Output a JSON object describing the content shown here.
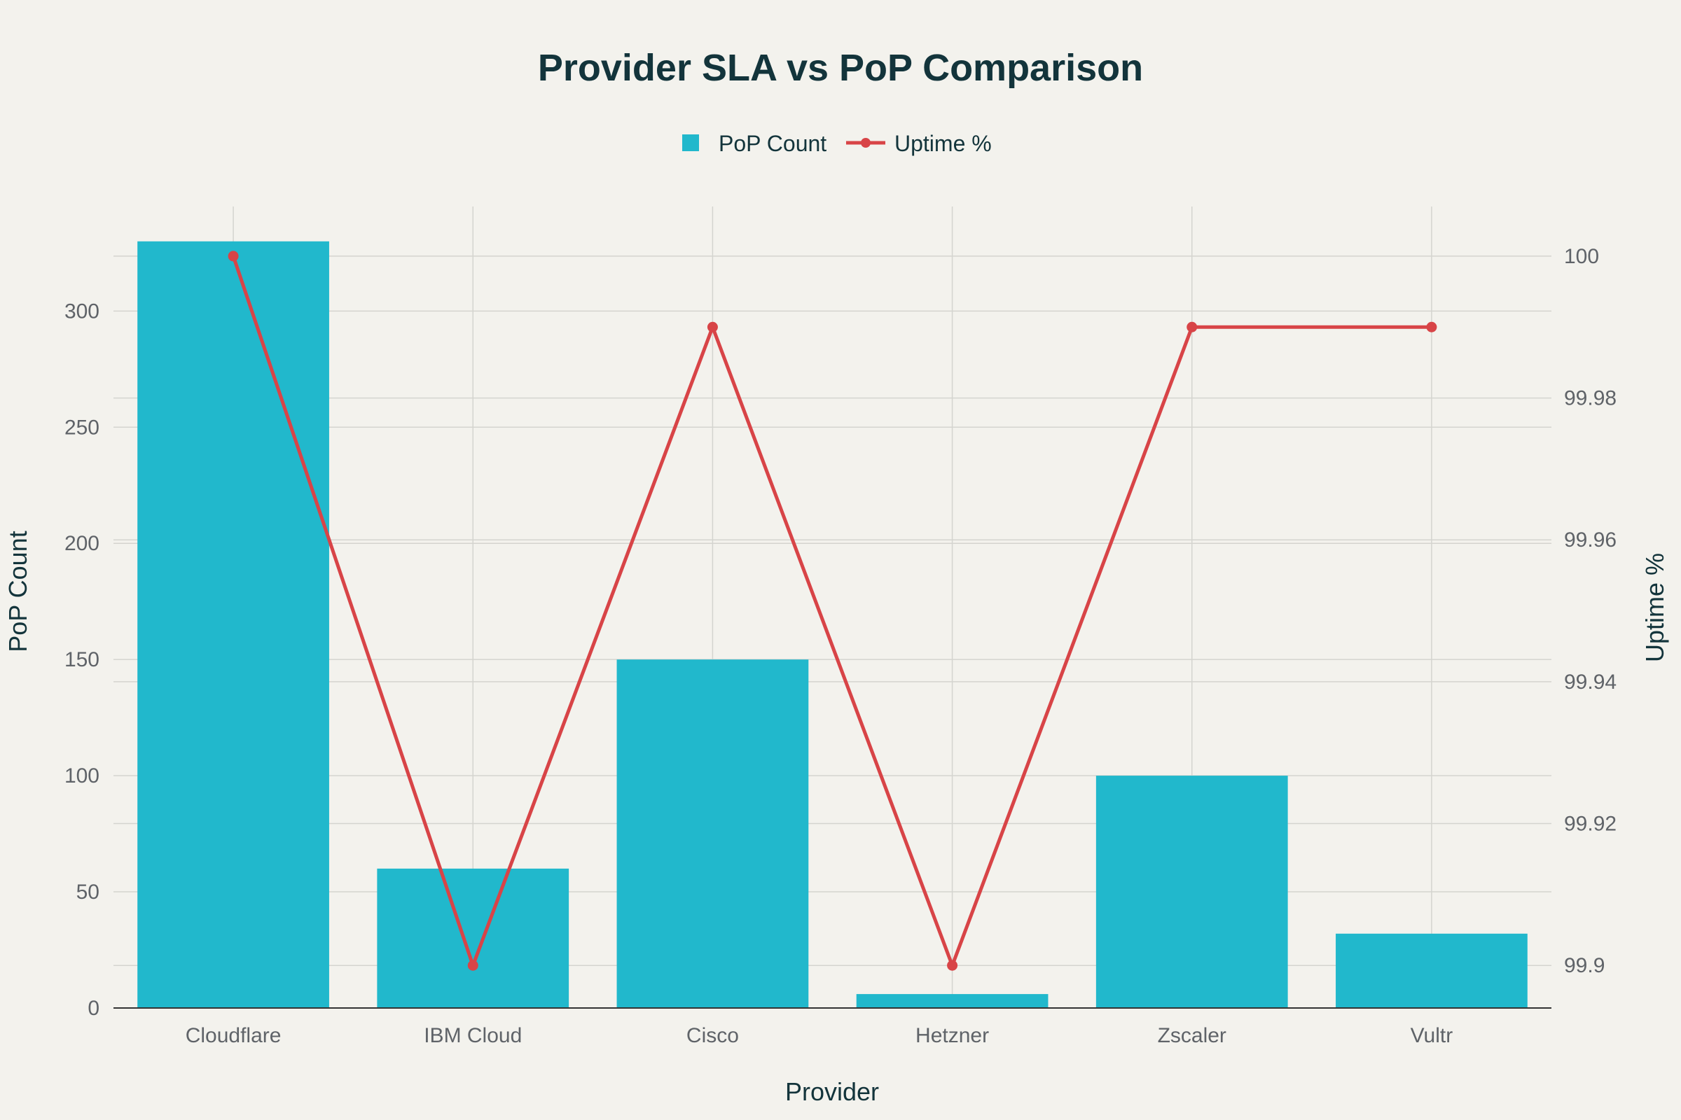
{
  "chart_data": {
    "type": "bar",
    "title": "Provider SLA vs PoP Comparison",
    "xlabel": "Provider",
    "ylabel": "PoP Count",
    "y2label": "Uptime %",
    "categories": [
      "Cloudflare",
      "IBM Cloud",
      "Cisco",
      "Hetzner",
      "Zscaler",
      "Vultr"
    ],
    "series": [
      {
        "name": "PoP Count",
        "type": "bar",
        "axis": "left",
        "values": [
          330,
          60,
          150,
          6,
          100,
          32
        ]
      },
      {
        "name": "Uptime %",
        "type": "line",
        "axis": "right",
        "values": [
          100,
          99.9,
          99.99,
          99.9,
          99.99,
          99.99
        ]
      }
    ],
    "ylim": [
      0,
      345
    ],
    "y2lim": [
      99.894,
      100.007
    ],
    "yticks": [
      0,
      50,
      100,
      150,
      200,
      250,
      300
    ],
    "ytick_labels": [
      "0",
      "50",
      "100",
      "150",
      "200",
      "250",
      "300"
    ],
    "y2ticks": [
      99.9,
      99.92,
      99.94,
      99.96,
      99.98,
      100
    ],
    "y2tick_labels": [
      "99.9",
      "99.92",
      "99.94",
      "99.96",
      "99.98",
      "100"
    ],
    "grid": true,
    "legend_position": "top-center",
    "colors": {
      "bar": "#21b8cc",
      "line": "#d84447",
      "background": "#f3f2ed"
    }
  }
}
